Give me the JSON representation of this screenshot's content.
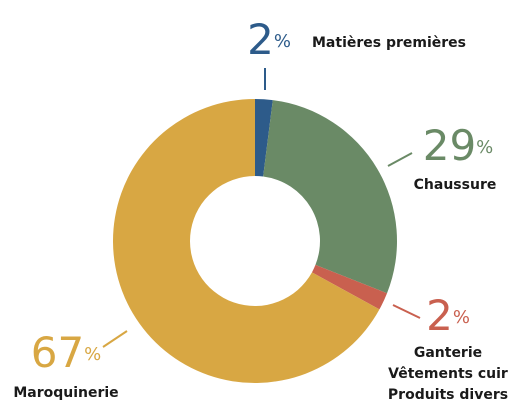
{
  "chart_data": {
    "type": "donut",
    "categories": [
      "Matières premières",
      "Chaussure",
      [
        "Ganterie",
        "Vêtements cuir",
        "Produits divers"
      ],
      "Maroquinerie"
    ],
    "values": [
      2,
      29,
      2,
      67
    ],
    "value_labels": [
      "2%",
      "29%",
      "2%",
      "67%"
    ],
    "colors": [
      "#2d5b8a",
      "#6a8a66",
      "#c9604f",
      "#d8a743"
    ]
  }
}
